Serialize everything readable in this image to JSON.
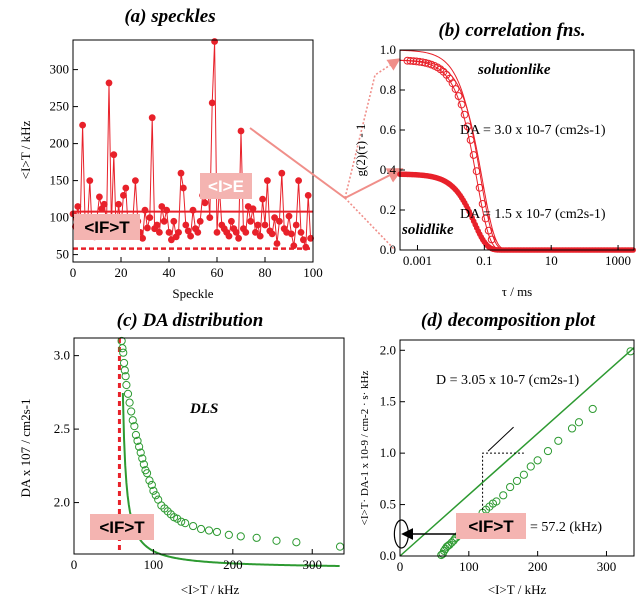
{
  "colors": {
    "red": "#e8212a",
    "green": "#2d9a31",
    "pink_box": "#f4b4b1",
    "arrow_pink": "#f08f8a"
  },
  "chart_data": [
    {
      "id": "a",
      "type": "scatter",
      "title": "(a) speckles",
      "xlabel": "Speckle",
      "ylabel": "<I>T / kHz",
      "xlim": [
        0,
        100
      ],
      "ylim": [
        40,
        340
      ],
      "xticks": [
        "0",
        "20",
        "40",
        "60",
        "80",
        "100"
      ],
      "yticks": [
        "50",
        "100",
        "150",
        "200",
        "250",
        "300"
      ],
      "values": [
        105,
        88,
        115,
        92,
        225,
        98,
        87,
        150,
        80,
        74,
        100,
        128,
        112,
        118,
        95,
        282,
        90,
        185,
        78,
        118,
        86,
        130,
        140,
        84,
        90,
        100,
        150,
        95,
        80,
        72,
        110,
        86,
        100,
        235,
        85,
        90,
        80,
        115,
        95,
        110,
        80,
        70,
        95,
        74,
        80,
        160,
        140,
        90,
        82,
        75,
        110,
        85,
        80,
        95,
        130,
        120,
        150,
        100,
        255,
        338,
        80,
        140,
        90,
        85,
        80,
        75,
        95,
        85,
        80,
        72,
        217,
        85,
        80,
        115,
        95,
        112,
        80,
        90,
        75,
        125,
        90,
        150,
        82,
        78,
        100,
        65,
        95,
        160,
        85,
        80,
        102,
        78,
        62,
        90,
        150,
        80,
        70,
        60,
        130,
        72
      ],
      "lines": [
        {
          "name": "<I>E",
          "y": 108
        },
        {
          "name": "<IF>T",
          "y": 58
        }
      ],
      "label_E": "<I>E",
      "label_F": "<IF>T"
    },
    {
      "id": "b",
      "type": "scatter",
      "title": "(b) correlation fns.",
      "xlabel": "τ / ms",
      "ylabel": "g(2)(τ) - 1",
      "x_scale": "log",
      "xlim": [
        0.0003,
        3000
      ],
      "ylim": [
        0,
        1.0
      ],
      "xticks": [
        "0.001",
        "0.1",
        "10",
        "1000"
      ],
      "yticks": [
        "0.0",
        "0.2",
        "0.4",
        "0.6",
        "0.8",
        "1.0"
      ],
      "series": [
        {
          "name": "solutionlike",
          "amplitude": 0.95,
          "decay_ms": 0.12
        },
        {
          "name": "solidlike",
          "amplitude": 0.38,
          "decay_ms": 0.09
        }
      ],
      "annotations": [
        "solutionlike",
        "solidlike",
        "DA = 3.0 x 10-7 (cm2s-1)",
        "DA = 1.5 x 10-7 (cm2s-1)"
      ]
    },
    {
      "id": "c",
      "type": "scatter",
      "title": "(c) DA distribution",
      "xlabel": "<I>T / kHz",
      "ylabel": "DA x 107 / cm2s-1",
      "xlim": [
        0,
        340
      ],
      "ylim": [
        1.65,
        3.12
      ],
      "xticks": [
        "0",
        "100",
        "200",
        "300"
      ],
      "yticks": [
        "2.0",
        "2.5",
        "3.0"
      ],
      "x": [
        60,
        61,
        62,
        63,
        64,
        65,
        66,
        68,
        70,
        72,
        74,
        76,
        78,
        80,
        82,
        84,
        86,
        88,
        90,
        92,
        95,
        98,
        100,
        103,
        106,
        110,
        114,
        118,
        122,
        126,
        130,
        135,
        140,
        150,
        160,
        170,
        180,
        195,
        210,
        230,
        255,
        280,
        335
      ],
      "y": [
        3.1,
        3.05,
        3.02,
        2.95,
        2.9,
        2.86,
        2.8,
        2.74,
        2.68,
        2.62,
        2.56,
        2.52,
        2.46,
        2.42,
        2.38,
        2.34,
        2.3,
        2.26,
        2.22,
        2.2,
        2.15,
        2.12,
        2.08,
        2.05,
        2.02,
        1.98,
        1.96,
        1.94,
        1.92,
        1.9,
        1.89,
        1.87,
        1.86,
        1.84,
        1.82,
        1.81,
        1.8,
        1.78,
        1.77,
        1.76,
        1.74,
        1.73,
        1.7
      ],
      "fit_IF": 57.2,
      "annotation": "DLS",
      "label_F": "<IF>T"
    },
    {
      "id": "d",
      "type": "scatter",
      "title": "(d) decomposition plot",
      "xlabel": "<I>T / kHz",
      "ylabel": "<I>T· DA-1 x 10-9 / cm-2 · s· kHz",
      "xlim": [
        0,
        340
      ],
      "ylim": [
        0,
        2.1
      ],
      "xticks": [
        "0",
        "100",
        "200",
        "300"
      ],
      "yticks": [
        "0.0",
        "0.5",
        "1.0",
        "1.5",
        "2.0"
      ],
      "x": [
        60,
        62,
        64,
        66,
        68,
        70,
        72,
        75,
        78,
        80,
        82,
        85,
        88,
        90,
        95,
        100,
        105,
        110,
        115,
        120,
        125,
        130,
        135,
        140,
        150,
        160,
        170,
        180,
        190,
        200,
        215,
        230,
        250,
        260,
        280,
        335
      ],
      "y": [
        0.01,
        0.02,
        0.05,
        0.07,
        0.09,
        0.1,
        0.11,
        0.13,
        0.15,
        0.17,
        0.18,
        0.2,
        0.21,
        0.22,
        0.26,
        0.29,
        0.32,
        0.35,
        0.38,
        0.42,
        0.45,
        0.48,
        0.51,
        0.53,
        0.59,
        0.67,
        0.73,
        0.79,
        0.87,
        0.93,
        1.02,
        1.12,
        1.24,
        1.3,
        1.43,
        1.99
      ],
      "D_label": "D = 3.05 x 10-7 (cm2s-1)",
      "IF_label": "= 57.2  (kHz)",
      "label_F": "<IF>T"
    }
  ]
}
